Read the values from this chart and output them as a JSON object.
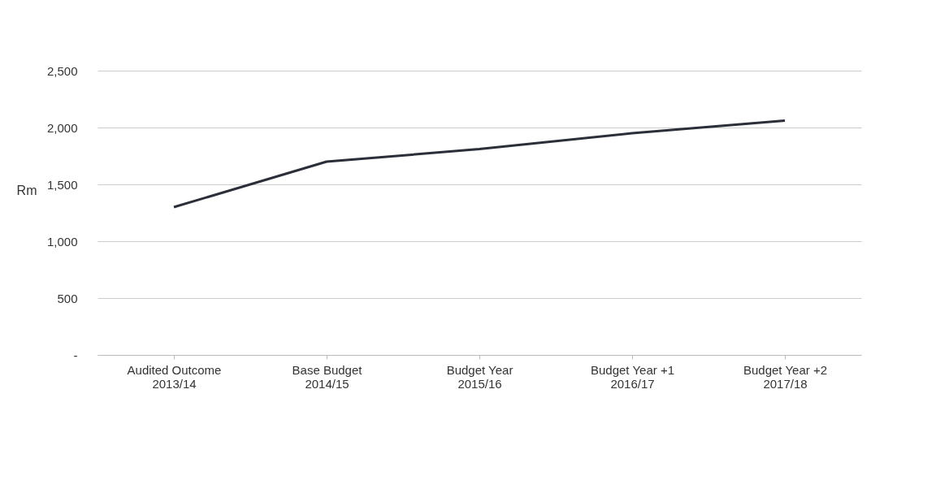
{
  "chart_data": {
    "type": "line",
    "categories": [
      "Audited Outcome\n2013/14",
      "Base Budget\n2014/15",
      "Budget Year\n2015/16",
      "Budget Year +1\n2016/17",
      "Budget Year +2\n2017/18"
    ],
    "series": [
      {
        "color": "#2b2f3a",
        "values": [
          1300,
          1700,
          1810,
          1950,
          2060
        ]
      }
    ],
    "ylabel": "Rm",
    "ylim": [
      0,
      2500
    ],
    "yticks": [
      {
        "value": 0,
        "label": "-"
      },
      500,
      {
        "value": 1000,
        "label": "1,000"
      },
      {
        "value": 1500,
        "label": "1,500"
      },
      {
        "value": 2000,
        "label": "2,000"
      },
      {
        "value": 2500,
        "label": "2,500"
      }
    ],
    "grid": "y",
    "marker": "none",
    "line_style": "solid"
  }
}
